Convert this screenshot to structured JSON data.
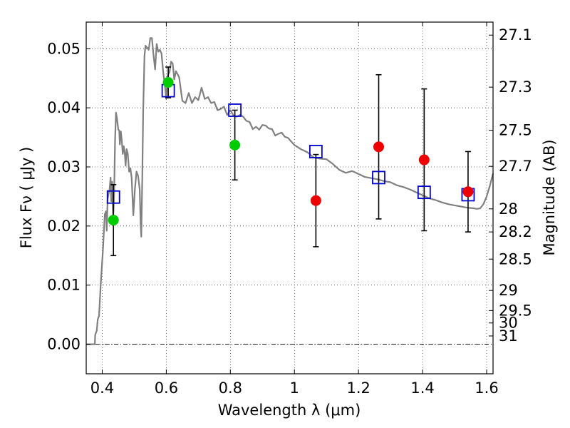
{
  "chart_data": {
    "type": "scatter",
    "title": "",
    "xlabel": "Wavelength  λ (μm)",
    "ylabel": "Flux  Fν  ( μJy )",
    "y2label": "Magnitude (AB)",
    "xlim": [
      0.35,
      1.62
    ],
    "ylim": [
      -0.005,
      0.0545
    ],
    "grid": true,
    "x_ticks": [
      0.4,
      0.6,
      0.8,
      1.0,
      1.2,
      1.4,
      1.6
    ],
    "x_tick_labels": [
      "0.4",
      "0.6",
      "0.8",
      "1",
      "1.2",
      "1.4",
      "1.6"
    ],
    "y_ticks": [
      0.0,
      0.01,
      0.02,
      0.03,
      0.04,
      0.05
    ],
    "y_tick_labels": [
      "0.00",
      "0.01",
      "0.02",
      "0.03",
      "0.04",
      "0.05"
    ],
    "y2_ticks": [
      {
        "label": "27.1",
        "flux": 0.0523
      },
      {
        "label": "27.3",
        "flux": 0.0435
      },
      {
        "label": "27.5",
        "flux": 0.0362
      },
      {
        "label": "27.7",
        "flux": 0.0301
      },
      {
        "label": "28",
        "flux": 0.0229
      },
      {
        "label": "28.2",
        "flux": 0.019
      },
      {
        "label": "28.5",
        "flux": 0.0144
      },
      {
        "label": "29",
        "flux": 0.0091
      },
      {
        "label": "29.5",
        "flux": 0.0057
      },
      {
        "label": "30",
        "flux": 0.0036
      },
      {
        "label": "31",
        "flux": 0.0014
      }
    ],
    "series": [
      {
        "kind": "line",
        "color": "#808080",
        "x": [
          0.35,
          0.377,
          0.378,
          0.383,
          0.386,
          0.39,
          0.395,
          0.402,
          0.408,
          0.412,
          0.414,
          0.417,
          0.42,
          0.423,
          0.426,
          0.428,
          0.431,
          0.434,
          0.437,
          0.44,
          0.443,
          0.446,
          0.45,
          0.453,
          0.455,
          0.458,
          0.461,
          0.464,
          0.467,
          0.47,
          0.473,
          0.476,
          0.48,
          0.484,
          0.488,
          0.492,
          0.497,
          0.502,
          0.507,
          0.512,
          0.517,
          0.52,
          0.522,
          0.525,
          0.528,
          0.532,
          0.535,
          0.54,
          0.545,
          0.55,
          0.555,
          0.56,
          0.565,
          0.57,
          0.575,
          0.58,
          0.585,
          0.59,
          0.595,
          0.6,
          0.605,
          0.61,
          0.615,
          0.62,
          0.625,
          0.63,
          0.64,
          0.65,
          0.66,
          0.67,
          0.68,
          0.69,
          0.7,
          0.71,
          0.72,
          0.73,
          0.74,
          0.75,
          0.76,
          0.77,
          0.78,
          0.79,
          0.8,
          0.81,
          0.82,
          0.83,
          0.84,
          0.85,
          0.86,
          0.87,
          0.88,
          0.89,
          0.9,
          0.91,
          0.92,
          0.93,
          0.94,
          0.95,
          0.96,
          0.97,
          0.98,
          0.99,
          1.0,
          1.02,
          1.04,
          1.06,
          1.08,
          1.1,
          1.12,
          1.14,
          1.16,
          1.18,
          1.2,
          1.22,
          1.24,
          1.26,
          1.28,
          1.3,
          1.32,
          1.34,
          1.36,
          1.38,
          1.4,
          1.42,
          1.44,
          1.46,
          1.48,
          1.5,
          1.52,
          1.54,
          1.56,
          1.57,
          1.58,
          1.59,
          1.6,
          1.61,
          1.62
        ],
        "y": [
          0.0,
          0.0,
          0.0016,
          0.0023,
          0.0042,
          0.0048,
          0.0098,
          0.0158,
          0.022,
          0.0225,
          0.0192,
          0.0246,
          0.0255,
          0.0262,
          0.0282,
          0.0242,
          0.0275,
          0.0212,
          0.025,
          0.0345,
          0.0392,
          0.0382,
          0.0363,
          0.0362,
          0.0338,
          0.036,
          0.0345,
          0.0322,
          0.0335,
          0.0325,
          0.0302,
          0.033,
          0.0322,
          0.0292,
          0.0298,
          0.0281,
          0.0218,
          0.0262,
          0.0292,
          0.0285,
          0.0262,
          0.0202,
          0.0182,
          0.0282,
          0.0398,
          0.0488,
          0.0505,
          0.0502,
          0.0498,
          0.0518,
          0.0518,
          0.049,
          0.0465,
          0.0508,
          0.0495,
          0.0498,
          0.0492,
          0.0462,
          0.044,
          0.0415,
          0.0455,
          0.046,
          0.0478,
          0.0475,
          0.0448,
          0.0462,
          0.0452,
          0.0412,
          0.0408,
          0.0425,
          0.0408,
          0.0418,
          0.0413,
          0.0434,
          0.0415,
          0.0418,
          0.0408,
          0.041,
          0.0396,
          0.0398,
          0.0402,
          0.0388,
          0.0396,
          0.0387,
          0.0385,
          0.0388,
          0.0385,
          0.0378,
          0.0376,
          0.0364,
          0.0368,
          0.0363,
          0.0371,
          0.037,
          0.0365,
          0.0364,
          0.0353,
          0.0356,
          0.0358,
          0.0351,
          0.0349,
          0.0343,
          0.0337,
          0.033,
          0.0325,
          0.0316,
          0.0314,
          0.0313,
          0.0305,
          0.0295,
          0.029,
          0.0293,
          0.0288,
          0.0283,
          0.0281,
          0.0279,
          0.0276,
          0.0274,
          0.0269,
          0.0266,
          0.0262,
          0.0257,
          0.0252,
          0.0247,
          0.0244,
          0.024,
          0.0237,
          0.0235,
          0.0233,
          0.0231,
          0.023,
          0.0229,
          0.023,
          0.0237,
          0.025,
          0.0268,
          0.0289
        ]
      },
      {
        "kind": "model_photometry",
        "marker": "open-square",
        "color": "#0000cc",
        "x": [
          0.435,
          0.606,
          0.814,
          1.067,
          1.263,
          1.405,
          1.542
        ],
        "y": [
          0.0249,
          0.0429,
          0.0396,
          0.0326,
          0.0282,
          0.0257,
          0.0253
        ]
      },
      {
        "kind": "observed_optical",
        "marker": "circle",
        "color": "#00cc00",
        "x": [
          0.435,
          0.606,
          0.814
        ],
        "y": [
          0.021,
          0.0443,
          0.0337
        ],
        "err": [
          0.006,
          0.0026,
          0.0059
        ]
      },
      {
        "kind": "observed_nir",
        "marker": "circle",
        "color": "#ee0000",
        "x": [
          1.067,
          1.263,
          1.405,
          1.542
        ],
        "y": [
          0.0243,
          0.0334,
          0.0312,
          0.0258
        ],
        "err": [
          0.0078,
          0.0122,
          0.012,
          0.0068
        ]
      }
    ]
  }
}
